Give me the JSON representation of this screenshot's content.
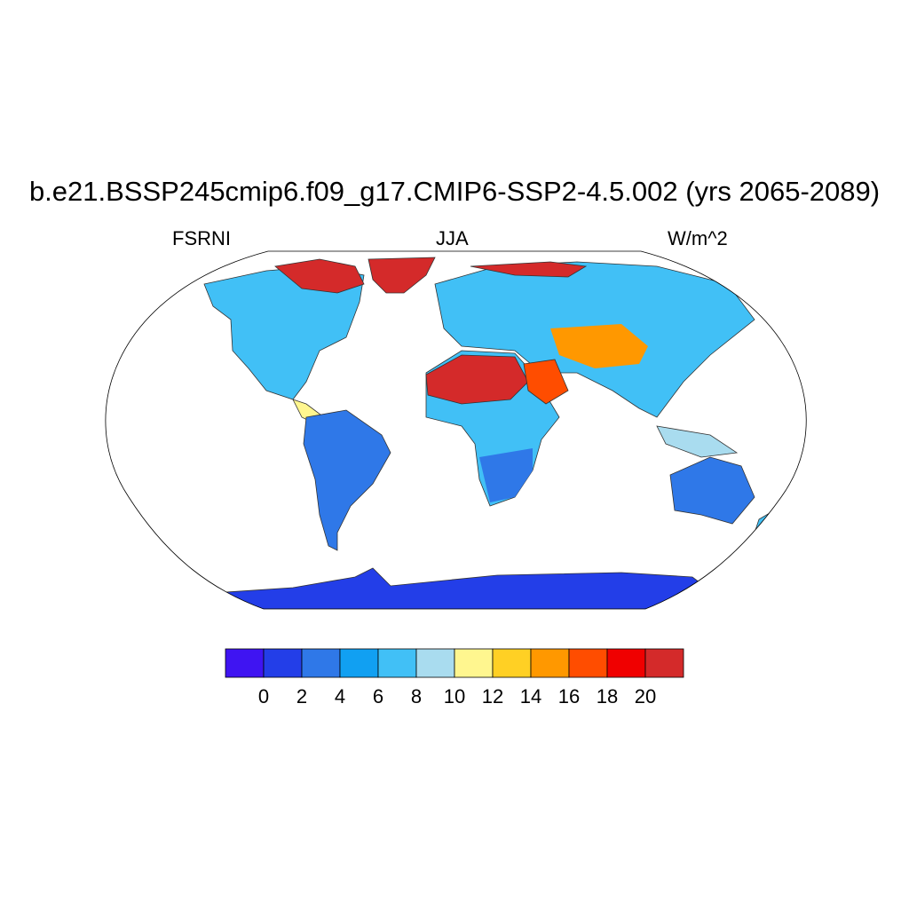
{
  "title": "b.e21.BSSP245cmip6.f09_g17.CMIP6-SSP2-4.5.002 (yrs 2065-2089)",
  "left_label": "FSRNI",
  "center_label": "JJA",
  "right_label": "W/m^2",
  "colorbar": {
    "colors": [
      "#3f14f2",
      "#233ee8",
      "#2f78e8",
      "#11a0f2",
      "#41c0f6",
      "#a9dcef",
      "#fff68f",
      "#ffd024",
      "#ff9800",
      "#ff4d00",
      "#f00000",
      "#d42a2a"
    ],
    "tick_labels": [
      "0",
      "2",
      "4",
      "6",
      "8",
      "10",
      "12",
      "14",
      "16",
      "18",
      "20"
    ]
  },
  "map": {
    "projection": "Robinson",
    "land_colors": {
      "south_america": "#2f78e8",
      "north_america": "#41c0f6",
      "africa": "#41c0f6",
      "eurasia": "#41c0f6",
      "australia": "#2f78e8",
      "antarctica": "#233ee8",
      "greenland": "#d42a2a",
      "sahara": "#d42a2a",
      "arabia": "#ff4d00",
      "central_asia": "#ff9800"
    }
  }
}
